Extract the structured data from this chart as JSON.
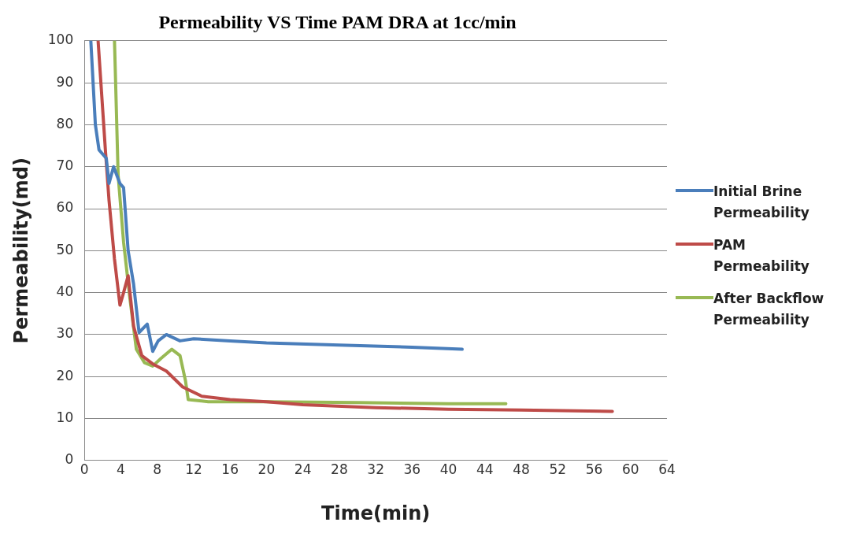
{
  "chart_data": {
    "type": "line",
    "title": "Permeability VS Time PAM DRA at 1cc/min",
    "xlabel": "Time(min)",
    "ylabel": "Permeability(md)",
    "xlim": [
      0,
      64
    ],
    "xticks": [
      0,
      4,
      8,
      12,
      16,
      20,
      24,
      28,
      32,
      36,
      40,
      44,
      48,
      52,
      56,
      60,
      64
    ],
    "ylim": [
      0,
      100
    ],
    "yticks": [
      0,
      10,
      20,
      30,
      40,
      50,
      60,
      70,
      80,
      90,
      100
    ],
    "grid": "y",
    "legend": "right",
    "marker": "none",
    "line_style": "solid",
    "series": [
      {
        "name": "Initial Brine Permeability",
        "color": "#4a7ebb",
        "x": [
          0.7,
          1.2,
          1.6,
          2.4,
          2.7,
          3.2,
          3.9,
          4.3,
          4.8,
          5.4,
          6.0,
          6.9,
          7.5,
          8.1,
          9.0,
          10.5,
          12,
          16,
          20,
          28,
          36,
          41.5
        ],
        "values": [
          100,
          80,
          74,
          72,
          66,
          70,
          66,
          65,
          50,
          42,
          30.5,
          32.5,
          26,
          28.5,
          30,
          28.5,
          29,
          28.5,
          28,
          27.5,
          27,
          26.5
        ]
      },
      {
        "name": "PAM Permeability",
        "color": "#be4b48",
        "x": [
          1.5,
          2.3,
          2.7,
          3.3,
          3.9,
          4.3,
          4.8,
          5.4,
          6.3,
          7.5,
          9.0,
          10.8,
          12.9,
          16,
          20,
          24,
          32,
          40,
          48,
          58
        ],
        "values": [
          100,
          74,
          62,
          48,
          37,
          40,
          44,
          32,
          25,
          23,
          21.3,
          17.5,
          15.3,
          14.5,
          14,
          13.3,
          12.6,
          12.2,
          12,
          11.7
        ]
      },
      {
        "name": "After Backflow Permeability",
        "color": "#98b954",
        "x": [
          3.3,
          3.7,
          4.3,
          5.0,
          5.7,
          6.6,
          7.5,
          8.4,
          9.6,
          10.5,
          11.1,
          11.4,
          13.6,
          20,
          30,
          40,
          46.3
        ],
        "values": [
          100,
          68,
          52,
          38.5,
          26.5,
          23.3,
          22.5,
          24.3,
          26.5,
          25,
          19,
          14.5,
          14,
          14,
          13.8,
          13.5,
          13.5
        ]
      }
    ]
  }
}
